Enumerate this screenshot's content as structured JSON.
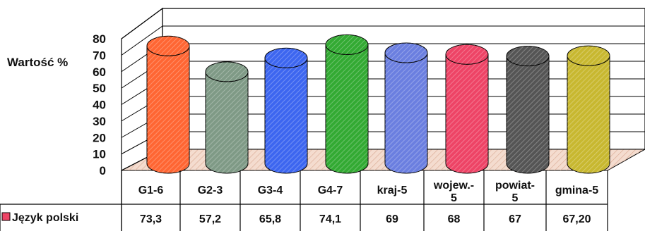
{
  "chart_data": {
    "type": "bar",
    "ylabel": "Wartość %",
    "ylim": [
      0,
      80
    ],
    "yticks": [
      "0",
      "10",
      "20",
      "30",
      "40",
      "50",
      "60",
      "70",
      "80"
    ],
    "categories": [
      [
        "G1-6"
      ],
      [
        "G2-3"
      ],
      [
        "G3-4"
      ],
      [
        "G4-7"
      ],
      [
        "kraj-5"
      ],
      [
        "wojew.-",
        "5"
      ],
      [
        "powiat-",
        "5"
      ],
      [
        "gmina-5"
      ]
    ],
    "series": [
      {
        "name": "Język polski",
        "values": [
          73.3,
          57.2,
          65.8,
          74.1,
          69,
          68,
          67,
          67.2
        ],
        "labels": [
          "73,3",
          "57,2",
          "65,8",
          "74,1",
          "69",
          "68",
          "67",
          "67,20"
        ]
      }
    ],
    "colors": [
      "#ff6633",
      "#7f9a86",
      "#3d66f0",
      "#33aa33",
      "#6b7fe0",
      "#ee4466",
      "#555555",
      "#c8b830"
    ],
    "legend_color": "#ee4466",
    "grid": true
  }
}
